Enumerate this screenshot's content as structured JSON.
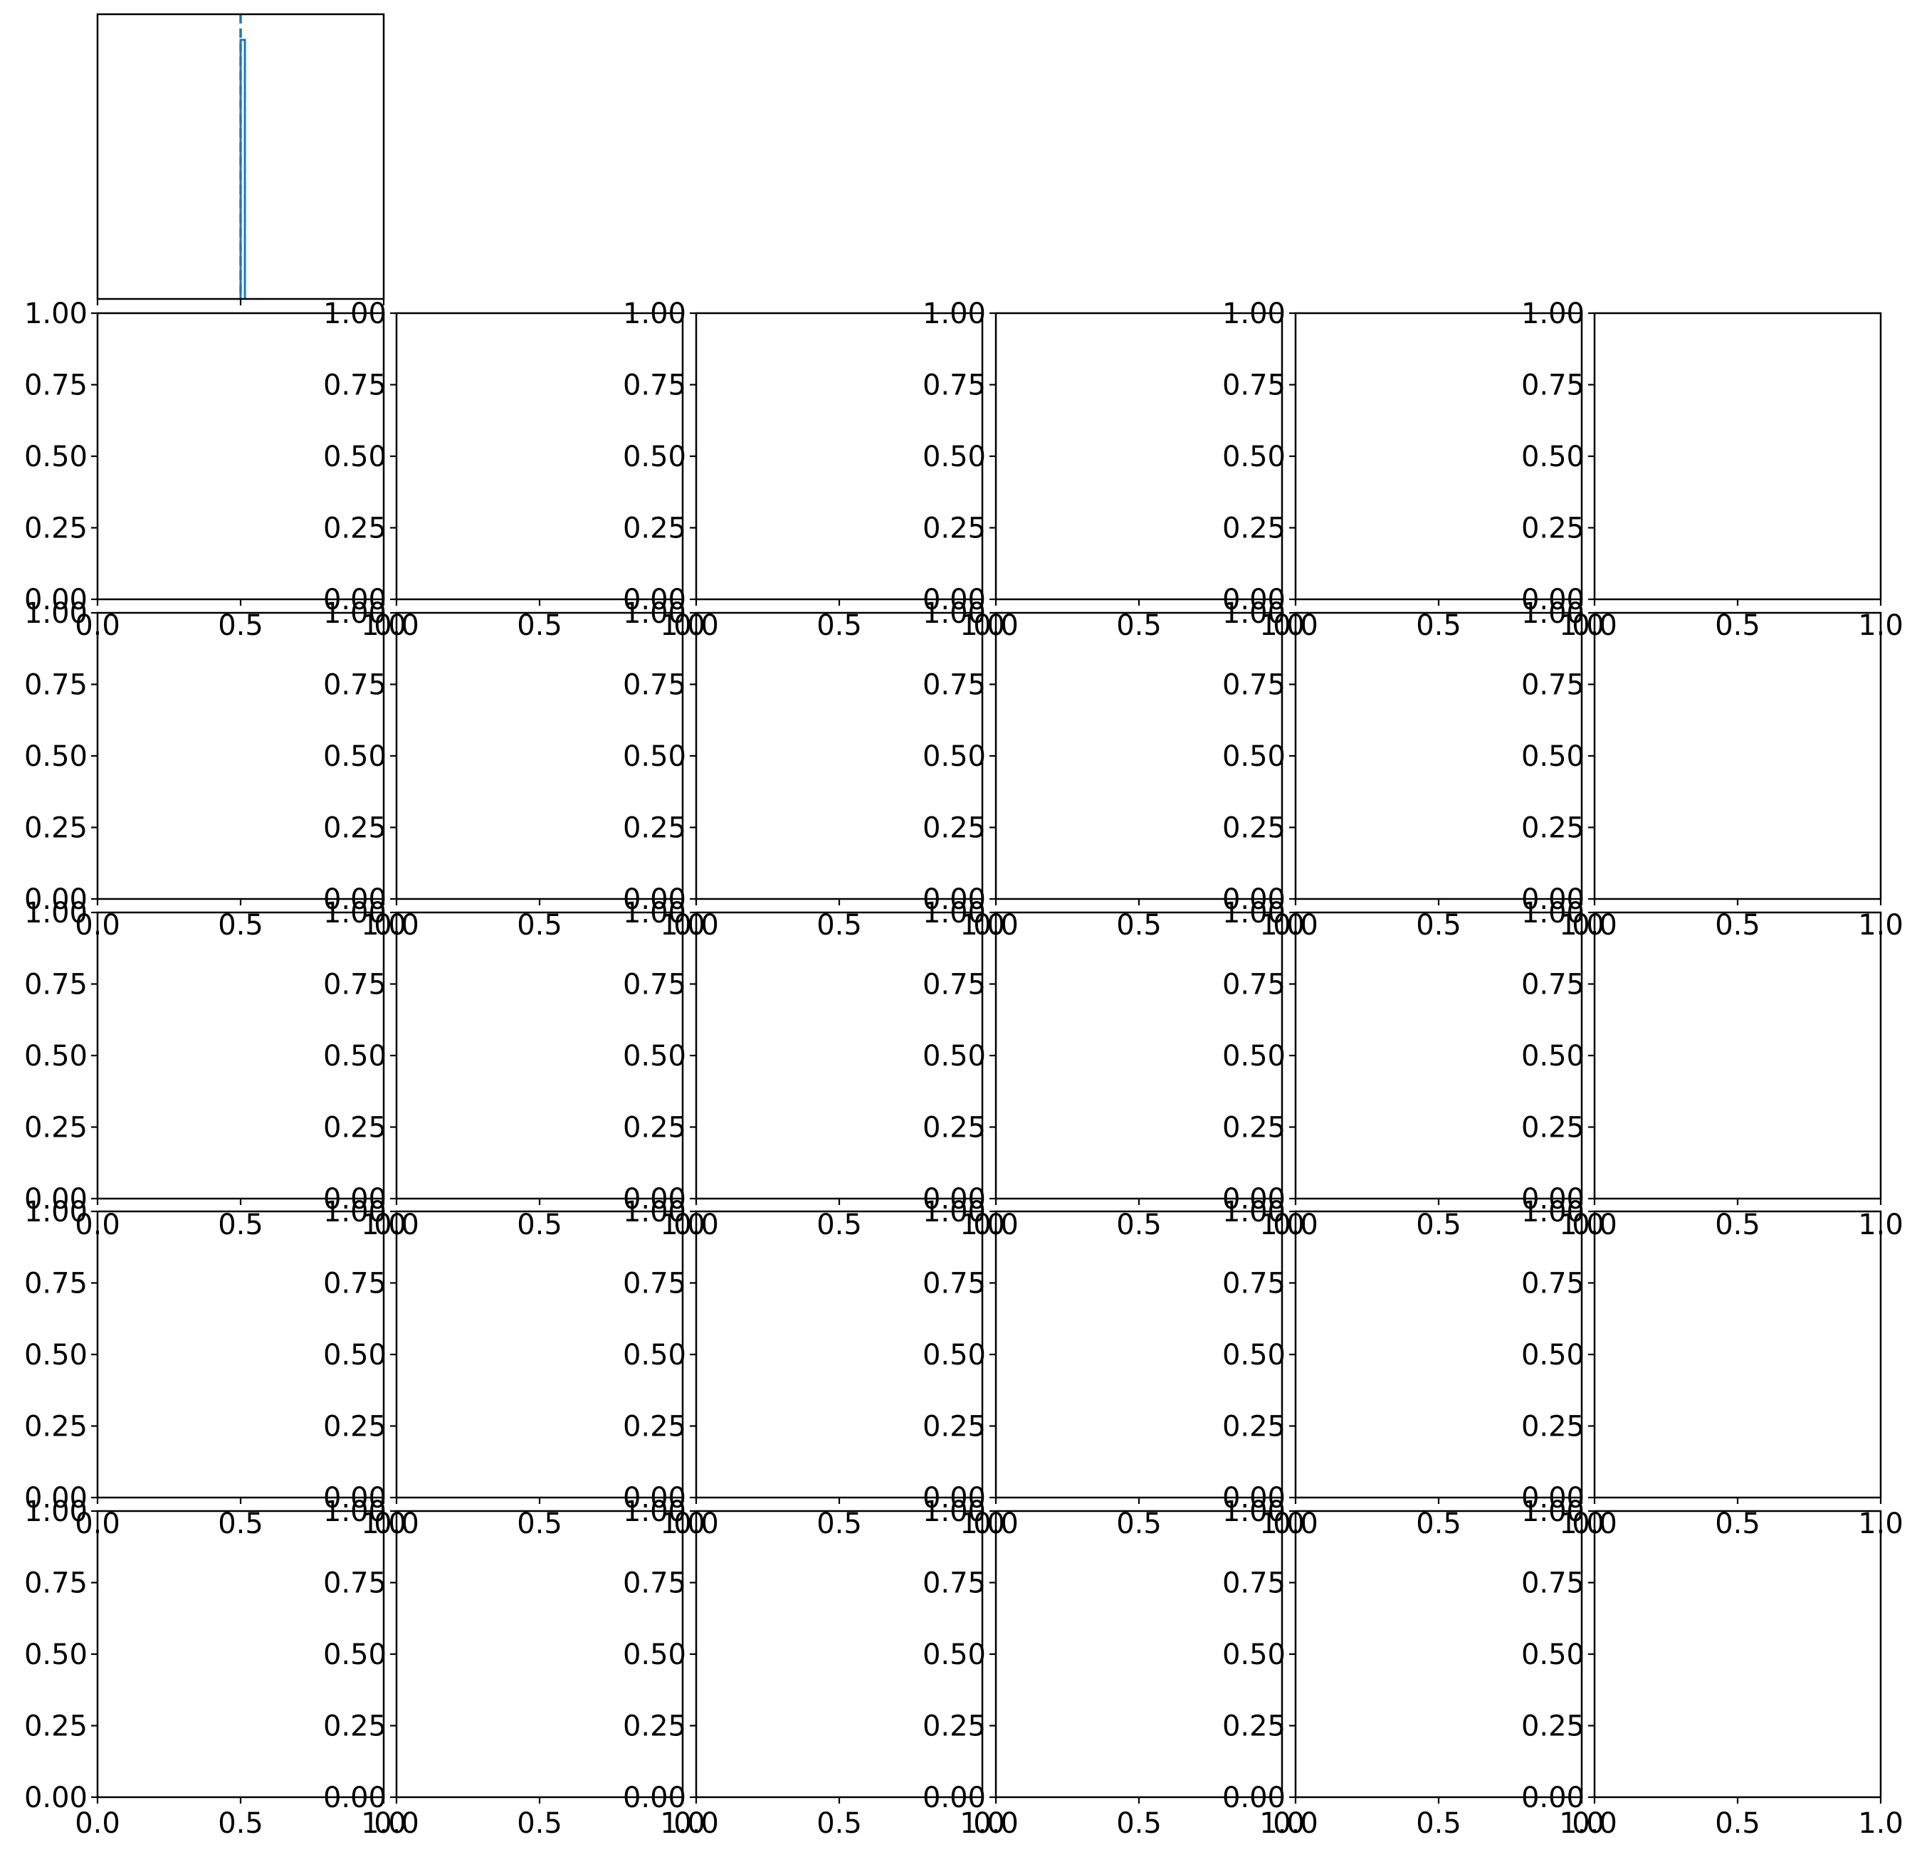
{
  "chart_data": {
    "type": "corner",
    "top_panel": {
      "type": "histogram",
      "bins": [
        {
          "x0": 0.5,
          "x1": 0.515,
          "count": 0.91
        }
      ],
      "ylim": [
        0,
        1
      ],
      "xlim": [
        0,
        1
      ],
      "marker_line_x": 0.5,
      "marker_line_style": "dashed",
      "color": "#1f77b4",
      "show_tick_labels": false
    },
    "grid": {
      "rows": 5,
      "cols": 6,
      "xlim": [
        0,
        1
      ],
      "ylim": [
        0,
        1
      ],
      "xticks": [
        "0.0",
        "0.5",
        "1.0"
      ],
      "yticks": [
        "0.00",
        "0.25",
        "0.50",
        "0.75",
        "1.00"
      ],
      "empty": true
    }
  }
}
